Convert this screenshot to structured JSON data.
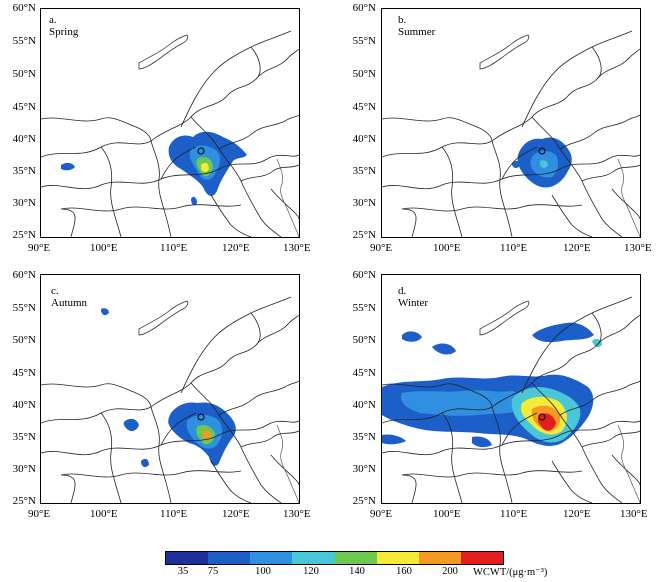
{
  "panels": [
    {
      "title": "a. Spring"
    },
    {
      "title": "b. Summer"
    },
    {
      "title": "c. Autumn"
    },
    {
      "title": "d. Winter"
    }
  ],
  "lat_labels": [
    "60°N",
    "55°N",
    "50°N",
    "45°N",
    "40°N",
    "35°N",
    "30°N",
    "25°N"
  ],
  "lon_labels": [
    "90°E",
    "100°E",
    "110°E",
    "120°E",
    "130°E"
  ],
  "legend": {
    "ticks": [
      "35",
      "75",
      "100",
      "120",
      "140",
      "160",
      "200"
    ],
    "unit": "WCWT/(μg·m⁻³)",
    "colors": [
      "#1f2f9c",
      "#1c5fc9",
      "#2f8fe0",
      "#49c7d9",
      "#6cc84e",
      "#f4ea3a",
      "#f49a24",
      "#e21e1e"
    ]
  }
}
